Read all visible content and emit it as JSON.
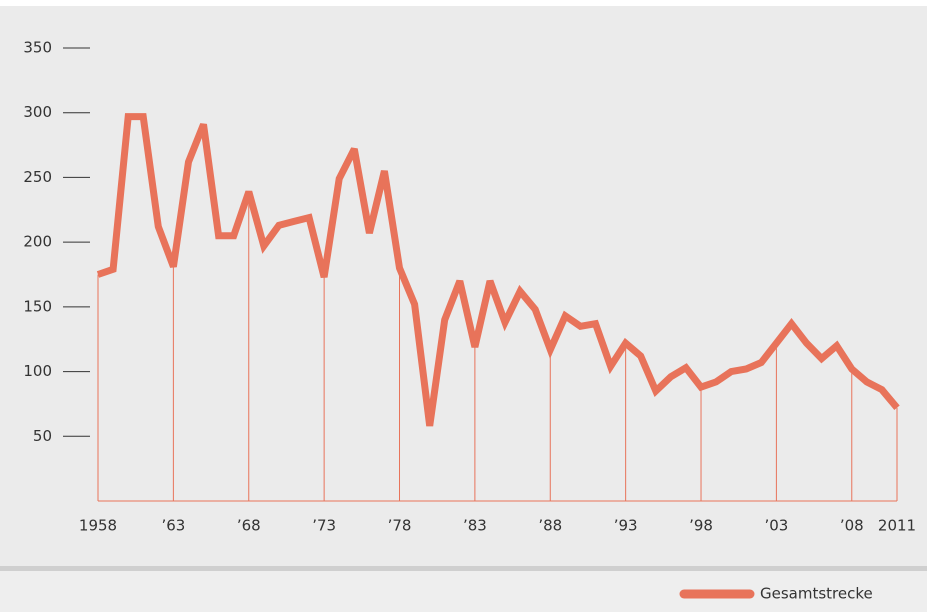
{
  "chart_data": {
    "type": "line",
    "x": [
      1958,
      1959,
      1960,
      1961,
      1962,
      1963,
      1964,
      1965,
      1966,
      1967,
      1968,
      1969,
      1970,
      1971,
      1972,
      1973,
      1974,
      1975,
      1976,
      1977,
      1978,
      1979,
      1980,
      1981,
      1982,
      1983,
      1984,
      1985,
      1986,
      1987,
      1988,
      1989,
      1990,
      1991,
      1992,
      1993,
      1994,
      1995,
      1996,
      1997,
      1998,
      1999,
      2000,
      2001,
      2002,
      2003,
      2004,
      2005,
      2006,
      2007,
      2008,
      2009,
      2010,
      2011
    ],
    "series": [
      {
        "name": "Gesamtstrecke",
        "color": "#e8735a",
        "values": [
          175,
          179,
          297,
          297,
          212,
          181,
          262,
          291,
          205,
          205,
          239,
          197,
          213,
          216,
          219,
          173,
          249,
          272,
          207,
          255,
          180,
          152,
          58,
          140,
          170,
          119,
          170,
          138,
          162,
          148,
          117,
          143,
          135,
          137,
          104,
          122,
          112,
          85,
          96,
          103,
          88,
          92,
          100,
          102,
          107,
          122,
          137,
          122,
          110,
          120,
          102,
          92,
          86,
          72
        ]
      }
    ],
    "xlim": [
      1958,
      2011
    ],
    "xticks": [
      1958,
      {
        "value": 1963,
        "label": "’63"
      },
      {
        "value": 1968,
        "label": "’68"
      },
      {
        "value": 1973,
        "label": "’73"
      },
      {
        "value": 1978,
        "label": "’78"
      },
      {
        "value": 1983,
        "label": "’83"
      },
      {
        "value": 1988,
        "label": "’88"
      },
      {
        "value": 1993,
        "label": "’93"
      },
      {
        "value": 1998,
        "label": "’98"
      },
      {
        "value": 2003,
        "label": "’03"
      },
      {
        "value": 2008,
        "label": "’08"
      },
      2011
    ],
    "ylim": [
      0,
      350
    ],
    "yticks": [
      50,
      100,
      150,
      200,
      250,
      300,
      350
    ]
  }
}
